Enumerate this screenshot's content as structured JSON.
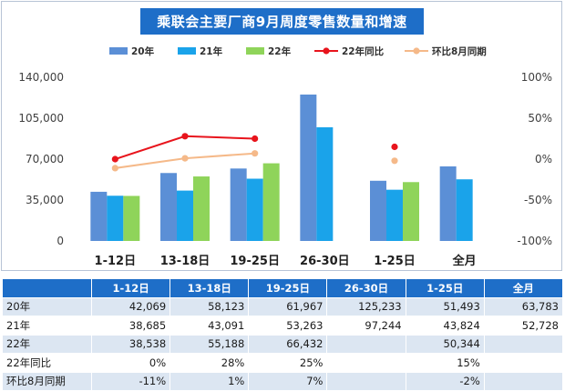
{
  "title": "乘联会主要厂商9月周度零售数量和增速",
  "chart_data": {
    "type": "bar",
    "categories": [
      "1-12日",
      "13-18日",
      "19-25日",
      "26-30日",
      "1-25日",
      "全月"
    ],
    "series": [
      {
        "name": "20年",
        "kind": "bar",
        "color": "#5b8fd6",
        "values": [
          42069,
          58123,
          61967,
          125233,
          51493,
          63783
        ]
      },
      {
        "name": "21年",
        "kind": "bar",
        "color": "#1aa3ea",
        "values": [
          38685,
          43091,
          53263,
          97244,
          43824,
          52728
        ]
      },
      {
        "name": "22年",
        "kind": "bar",
        "color": "#8fd45a",
        "values": [
          38538,
          55188,
          66432,
          null,
          50344,
          null
        ]
      },
      {
        "name": "22年同比",
        "kind": "line",
        "axis": "right",
        "color": "#e8141c",
        "values": [
          0,
          28,
          25,
          null,
          15,
          null
        ]
      },
      {
        "name": "环比8月同期",
        "kind": "line",
        "axis": "right",
        "color": "#f5b989",
        "values": [
          -11,
          1,
          7,
          null,
          -2,
          null
        ]
      }
    ],
    "y_left": {
      "min": 0,
      "max": 140000,
      "ticks": [
        "0",
        "35,000",
        "70,000",
        "105,000",
        "140,000"
      ]
    },
    "y_right": {
      "min": -100,
      "max": 100,
      "ticks": [
        "-100%",
        "-50%",
        "0%",
        "50%",
        "100%"
      ]
    },
    "legend_position": "top",
    "grid": false
  },
  "table": {
    "columns": [
      "",
      "1-12日",
      "13-18日",
      "19-25日",
      "26-30日",
      "1-25日",
      "全月"
    ],
    "rows": [
      [
        "20年",
        "42,069",
        "58,123",
        "61,967",
        "125,233",
        "51,493",
        "63,783"
      ],
      [
        "21年",
        "38,685",
        "43,091",
        "53,263",
        "97,244",
        "43,824",
        "52,728"
      ],
      [
        "22年",
        "38,538",
        "55,188",
        "66,432",
        "",
        "50,344",
        ""
      ],
      [
        "22年同比",
        "0%",
        "28%",
        "25%",
        "",
        "15%",
        ""
      ],
      [
        "环比8月同期",
        "-11%",
        "1%",
        "7%",
        "",
        "-2%",
        ""
      ]
    ]
  }
}
